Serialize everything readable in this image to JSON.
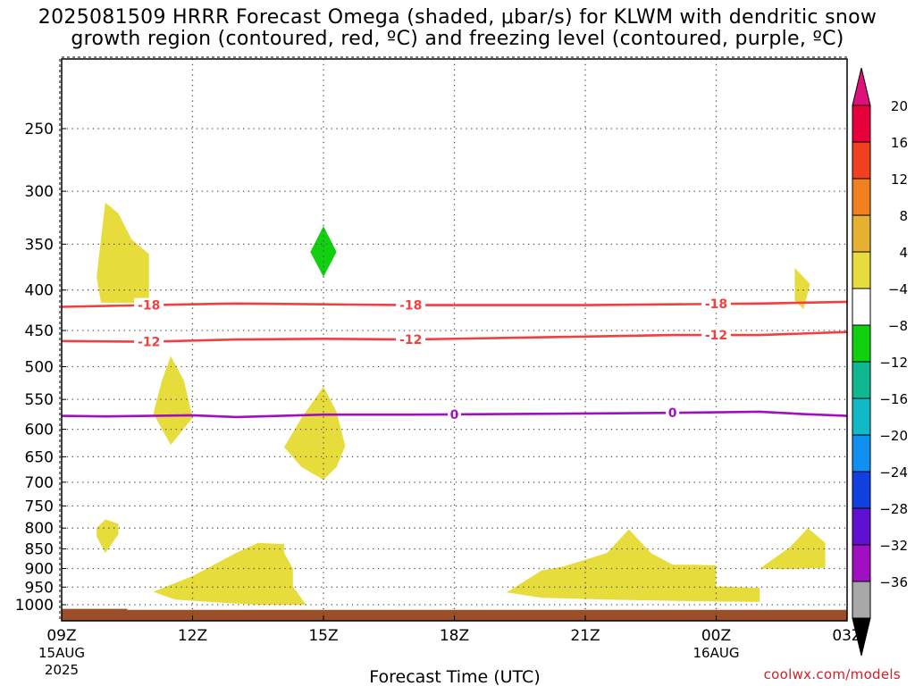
{
  "header": {
    "title_line1": "2025081509 HRRR Forecast Omega (shaded, μbar/s) for KLWM with dendritic snow",
    "title_line2": "growth region (contoured, red, ºC) and freezing level (contoured, purple, ºC)"
  },
  "credit": "coolwx.com/models",
  "chart_data": {
    "type": "time-height cross section",
    "title": "2025081509 HRRR Forecast Omega (shaded, μbar/s) for KLWM with dendritic snow growth region (contoured, red, ºC) and freezing level (contoured, purple, ºC)",
    "xlabel": "Forecast Time (UTC)",
    "ylabel": "",
    "xlim_hours": [
      0,
      18
    ],
    "ylim_hPa": [
      200,
      1025
    ],
    "y_scale": "pressure (reversed)",
    "grid": true,
    "x_ticks": [
      {
        "hour": 0,
        "label": "09Z",
        "sub1": "15AUG",
        "sub2": "2025"
      },
      {
        "hour": 3,
        "label": "12Z"
      },
      {
        "hour": 6,
        "label": "15Z"
      },
      {
        "hour": 9,
        "label": "18Z"
      },
      {
        "hour": 12,
        "label": "21Z"
      },
      {
        "hour": 15,
        "label": "00Z",
        "sub1": "16AUG"
      },
      {
        "hour": 18,
        "label": "03Z"
      }
    ],
    "y_ticks": [
      250,
      300,
      350,
      400,
      450,
      500,
      550,
      600,
      650,
      700,
      750,
      800,
      850,
      900,
      950,
      1000
    ],
    "colorbar": {
      "labels": [
        "20",
        "16",
        "12",
        "8",
        "4",
        "−4",
        "−8",
        "−12",
        "−16",
        "−20",
        "−24",
        "−28",
        "−32",
        "−36"
      ],
      "colors": [
        "#e8003c",
        "#f04020",
        "#f08020",
        "#e8b030",
        "#e6dc3c",
        "#ffffff",
        "#10d010",
        "#10b890",
        "#10b8c8",
        "#1090f0",
        "#1040e0",
        "#6010d0",
        "#a010c0",
        "#a8a8a8"
      ],
      "top_arrow_color": "#e0107a",
      "bottom_arrow_color": "#000000"
    },
    "contours": [
      {
        "level": "-18",
        "color": "#f04040",
        "points": [
          [
            0,
            420
          ],
          [
            2,
            418
          ],
          [
            4,
            416
          ],
          [
            6,
            417
          ],
          [
            8,
            418
          ],
          [
            10,
            418
          ],
          [
            12,
            418
          ],
          [
            14,
            417
          ],
          [
            16,
            416
          ],
          [
            18,
            414
          ]
        ],
        "label_hours": [
          2,
          8,
          15
        ]
      },
      {
        "level": "-12",
        "color": "#f04040",
        "points": [
          [
            0,
            464
          ],
          [
            2,
            465
          ],
          [
            4,
            462
          ],
          [
            6,
            461
          ],
          [
            8,
            462
          ],
          [
            10,
            460
          ],
          [
            12,
            458
          ],
          [
            14,
            456
          ],
          [
            16,
            456
          ],
          [
            18,
            452
          ]
        ],
        "label_hours": [
          2,
          8,
          15
        ]
      },
      {
        "level": "0",
        "color": "#a010c0",
        "points": [
          [
            0,
            577
          ],
          [
            1,
            578
          ],
          [
            2,
            577
          ],
          [
            3,
            576
          ],
          [
            4,
            579
          ],
          [
            5,
            577
          ],
          [
            6,
            575
          ],
          [
            8,
            575
          ],
          [
            10,
            574
          ],
          [
            12,
            573
          ],
          [
            14,
            572
          ],
          [
            15,
            571
          ],
          [
            16,
            570
          ],
          [
            17,
            574
          ],
          [
            18,
            577
          ]
        ],
        "label_hours": [
          9,
          14
        ]
      }
    ],
    "omega_regions": [
      {
        "value_class": "4 to 8",
        "color": "#e6dc3c",
        "points": [
          [
            0.8,
            385
          ],
          [
            1.0,
            310
          ],
          [
            1.3,
            320
          ],
          [
            1.6,
            345
          ],
          [
            2.0,
            360
          ],
          [
            2.0,
            415
          ],
          [
            0.9,
            415
          ]
        ]
      },
      {
        "value_class": "-4 to -8",
        "color": "#10d010",
        "points": [
          [
            6.0,
            332
          ],
          [
            6.3,
            358
          ],
          [
            6.0,
            385
          ],
          [
            5.7,
            358
          ]
        ]
      },
      {
        "value_class": "4 to 8",
        "color": "#e6dc3c",
        "points": [
          [
            16.8,
            375
          ],
          [
            17.15,
            393
          ],
          [
            17.0,
            423
          ],
          [
            16.8,
            412
          ]
        ]
      },
      {
        "value_class": "4 to 8",
        "color": "#e6dc3c",
        "points": [
          [
            2.1,
            573
          ],
          [
            2.3,
            520
          ],
          [
            2.5,
            485
          ],
          [
            2.8,
            520
          ],
          [
            3.0,
            580
          ],
          [
            2.5,
            628
          ]
        ]
      },
      {
        "value_class": "4 to 8",
        "color": "#e6dc3c",
        "points": [
          [
            5.1,
            632
          ],
          [
            5.5,
            580
          ],
          [
            6.0,
            530
          ],
          [
            6.3,
            570
          ],
          [
            6.5,
            630
          ],
          [
            6.3,
            670
          ],
          [
            6.0,
            695
          ],
          [
            5.5,
            670
          ]
        ]
      },
      {
        "value_class": "4 to 8",
        "color": "#e6dc3c",
        "points": [
          [
            0.8,
            800
          ],
          [
            1.0,
            780
          ],
          [
            1.3,
            790
          ],
          [
            1.3,
            815
          ],
          [
            1.0,
            860
          ],
          [
            0.8,
            820
          ]
        ]
      },
      {
        "value_class": "4 to 8",
        "color": "#e6dc3c",
        "points": [
          [
            2.1,
            963
          ],
          [
            3.0,
            920
          ],
          [
            4.0,
            860
          ],
          [
            4.5,
            835
          ],
          [
            5.0,
            838
          ],
          [
            5.1,
            838
          ],
          [
            5.1,
            860
          ],
          [
            5.3,
            900
          ],
          [
            5.3,
            948
          ],
          [
            5.6,
            1000
          ],
          [
            4.5,
            1000
          ],
          [
            3.5,
            993
          ],
          [
            2.6,
            985
          ]
        ]
      },
      {
        "value_class": "4 to 8",
        "color": "#e6dc3c",
        "points": [
          [
            10.2,
            965
          ],
          [
            11.0,
            905
          ],
          [
            11.5,
            895
          ],
          [
            12.5,
            860
          ],
          [
            13.0,
            803
          ],
          [
            13.5,
            860
          ],
          [
            14.0,
            890
          ],
          [
            14.5,
            890
          ],
          [
            15.0,
            892
          ],
          [
            15.0,
            948
          ],
          [
            16.0,
            952
          ],
          [
            16.0,
            992
          ],
          [
            14.5,
            990
          ],
          [
            12.5,
            985
          ],
          [
            11.0,
            980
          ]
        ]
      },
      {
        "value_class": "4 to 8",
        "color": "#e6dc3c",
        "points": [
          [
            16.0,
            900
          ],
          [
            16.7,
            845
          ],
          [
            17.1,
            800
          ],
          [
            17.5,
            835
          ],
          [
            17.5,
            898
          ],
          [
            16.6,
            902
          ]
        ]
      }
    ],
    "terrain": {
      "color": "#9b4e28",
      "top_hPa_start": 1012,
      "top_hPa_end": 1015
    }
  },
  "axes": {
    "xlabel": "Forecast Time (UTC)"
  }
}
